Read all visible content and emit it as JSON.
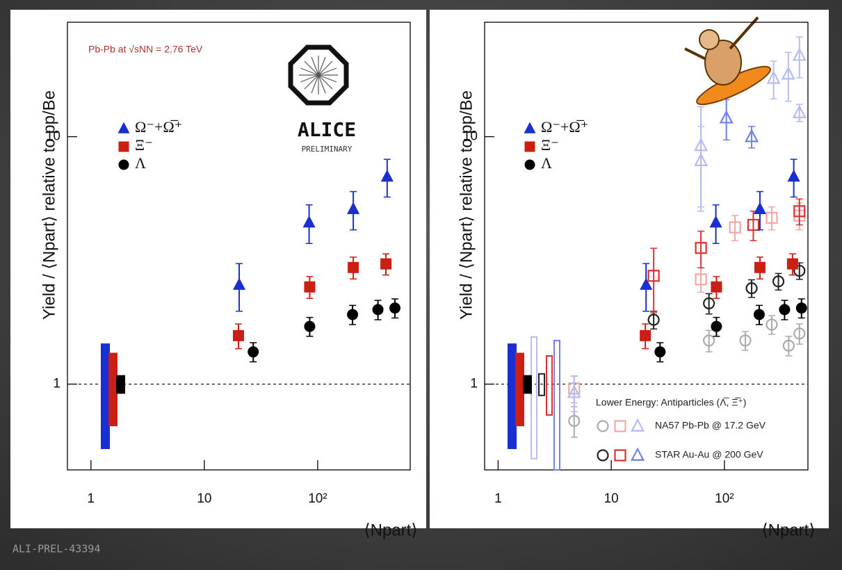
{
  "footer": "ALI-PREL-43394",
  "chart_data": [
    {
      "type": "scatter",
      "log_x": true,
      "log_y": true,
      "annotation": "Pb-Pb at √sNN = 2.76 TeV",
      "logo": {
        "text": "ALICE",
        "status": "PRELIMINARY"
      },
      "ylabel": "Yield / ⟨Npart⟩ relative to pp/Be",
      "xlabel": "⟨Npart⟩",
      "xlim": [
        0.62,
        655
      ],
      "ylim": [
        0.45,
        29
      ],
      "xticks": [
        1,
        10,
        {
          "value": 100,
          "label": "10²"
        }
      ],
      "yticks": [
        1,
        10
      ],
      "hline": 1,
      "series": [
        {
          "name": "Ω⁻+Ω̅⁺",
          "color": "#1a2fd0",
          "marker": "triangle",
          "filled": true,
          "x": [
            20.3,
            84,
            206,
            410
          ],
          "values": [
            2.52,
            4.5,
            5.1,
            6.9
          ],
          "errors": [
            0.55,
            0.8,
            0.9,
            1.2
          ],
          "norm_band": [
            0.55,
            1.45
          ]
        },
        {
          "name": "Ξ⁻",
          "color": "#cc1f14",
          "marker": "square",
          "filled": true,
          "x": [
            20,
            85,
            206,
            400
          ],
          "values": [
            1.57,
            2.47,
            2.96,
            3.06
          ],
          "errors": [
            0.18,
            0.25,
            0.3,
            0.3
          ],
          "norm_band": [
            0.68,
            1.33
          ]
        },
        {
          "name": "Λ",
          "color": "#000000",
          "marker": "circle",
          "filled": true,
          "x": [
            27,
            85,
            203,
            340,
            480
          ],
          "values": [
            1.35,
            1.71,
            1.91,
            2.0,
            2.03
          ],
          "errors": [
            0.12,
            0.15,
            0.17,
            0.18,
            0.18
          ],
          "norm_band": [
            0.92,
            1.08
          ]
        }
      ]
    },
    {
      "type": "scatter",
      "log_x": true,
      "log_y": true,
      "ylabel": "Yield / ⟨Npart⟩ relative to pp/Be",
      "xlabel": "⟨Npart⟩",
      "xlim": [
        0.76,
        547
      ],
      "ylim": [
        0.45,
        29
      ],
      "xticks": [
        1,
        10,
        {
          "value": 100,
          "label": "10²"
        }
      ],
      "yticks": [
        1,
        10
      ],
      "hline": 1,
      "series": [
        {
          "name": "Ω⁻+Ω̅⁺",
          "color": "#1a2fd0",
          "marker": "triangle",
          "filled": true,
          "x": [
            20.3,
            84,
            206,
            410
          ],
          "values": [
            2.52,
            4.5,
            5.1,
            6.9
          ],
          "errors": [
            0.55,
            0.8,
            0.9,
            1.2
          ],
          "norm_band": [
            0.55,
            1.45
          ]
        },
        {
          "name": "Ξ⁻",
          "color": "#cc1f14",
          "marker": "square",
          "filled": true,
          "x": [
            20,
            85,
            206,
            400
          ],
          "values": [
            1.57,
            2.47,
            2.96,
            3.06
          ],
          "errors": [
            0.18,
            0.25,
            0.3,
            0.3
          ],
          "norm_band": [
            0.68,
            1.33
          ]
        },
        {
          "name": "Λ",
          "color": "#000000",
          "marker": "circle",
          "filled": true,
          "x": [
            27,
            85,
            203,
            340,
            480
          ],
          "values": [
            1.35,
            1.71,
            1.91,
            2.0,
            2.03
          ],
          "errors": [
            0.12,
            0.15,
            0.17,
            0.18,
            0.18
          ],
          "norm_band": [
            0.92,
            1.08
          ]
        }
      ],
      "comparison_title": "Lower Energy: Antiparticles (Λ̅, Ξ̅⁺)",
      "comparisons": [
        {
          "name": "NA57 Pb-Pb @ 17.2 GeV",
          "series": [
            {
              "color": "#ababab",
              "marker": "circle",
              "filled": false,
              "x": [
                4.7,
                73,
                153,
                262,
                370,
                460
              ],
              "values": [
                0.71,
                1.5,
                1.5,
                1.74,
                1.43,
                1.6
              ],
              "errors": [
                0.1,
                0.15,
                0.13,
                0.15,
                0.13,
                0.15
              ]
            },
            {
              "color": "#f2a6a6",
              "marker": "square",
              "filled": false,
              "x": [
                4.7,
                62,
                124,
                262,
                460
              ],
              "values": [
                0.96,
                2.65,
                4.3,
                4.7,
                4.8
              ],
              "errors": [
                0.12,
                0.3,
                0.5,
                0.5,
                0.6
              ]
            },
            {
              "color": "#b4bcf2",
              "marker": "triangle",
              "filled": false,
              "x": [
                4.7,
                62,
                62,
                272,
                367,
                460,
                460
              ],
              "values": [
                0.925,
                9.2,
                8.0,
                17.2,
                17.9,
                21.3,
                12.5
              ],
              "errors": [
                0.15,
                4,
                3,
                3,
                4,
                4,
                1
              ],
              "norm_band": [
                0.5,
                1.55
              ]
            }
          ]
        },
        {
          "name": "STAR Au-Au @ 200 GeV",
          "series": [
            {
              "color": "#222222",
              "marker": "circle",
              "filled": false,
              "x": [
                23.7,
                73,
                174,
                300,
                460
              ],
              "values": [
                1.82,
                2.12,
                2.44,
                2.6,
                2.87
              ],
              "errors": [
                0.15,
                0.2,
                0.2,
                0.2,
                0.22
              ],
              "norm_band": [
                0.9,
                1.1
              ]
            },
            {
              "color": "#dd3030",
              "marker": "square",
              "filled": false,
              "x": [
                23.7,
                62,
                180,
                460
              ],
              "values": [
                2.74,
                3.55,
                4.4,
                5.0
              ],
              "errors": [
                0.8,
                0.6,
                0.6,
                0.6
              ],
              "norm_band": [
                0.75,
                1.3
              ]
            },
            {
              "color": "#7080e8",
              "marker": "triangle",
              "filled": false,
              "x": [
                104,
                174
              ],
              "values": [
                11.9,
                10.0
              ],
              "errors": [
                2.2,
                1.0
              ],
              "norm_band": [
                0.45,
                1.5
              ]
            }
          ]
        }
      ]
    }
  ]
}
